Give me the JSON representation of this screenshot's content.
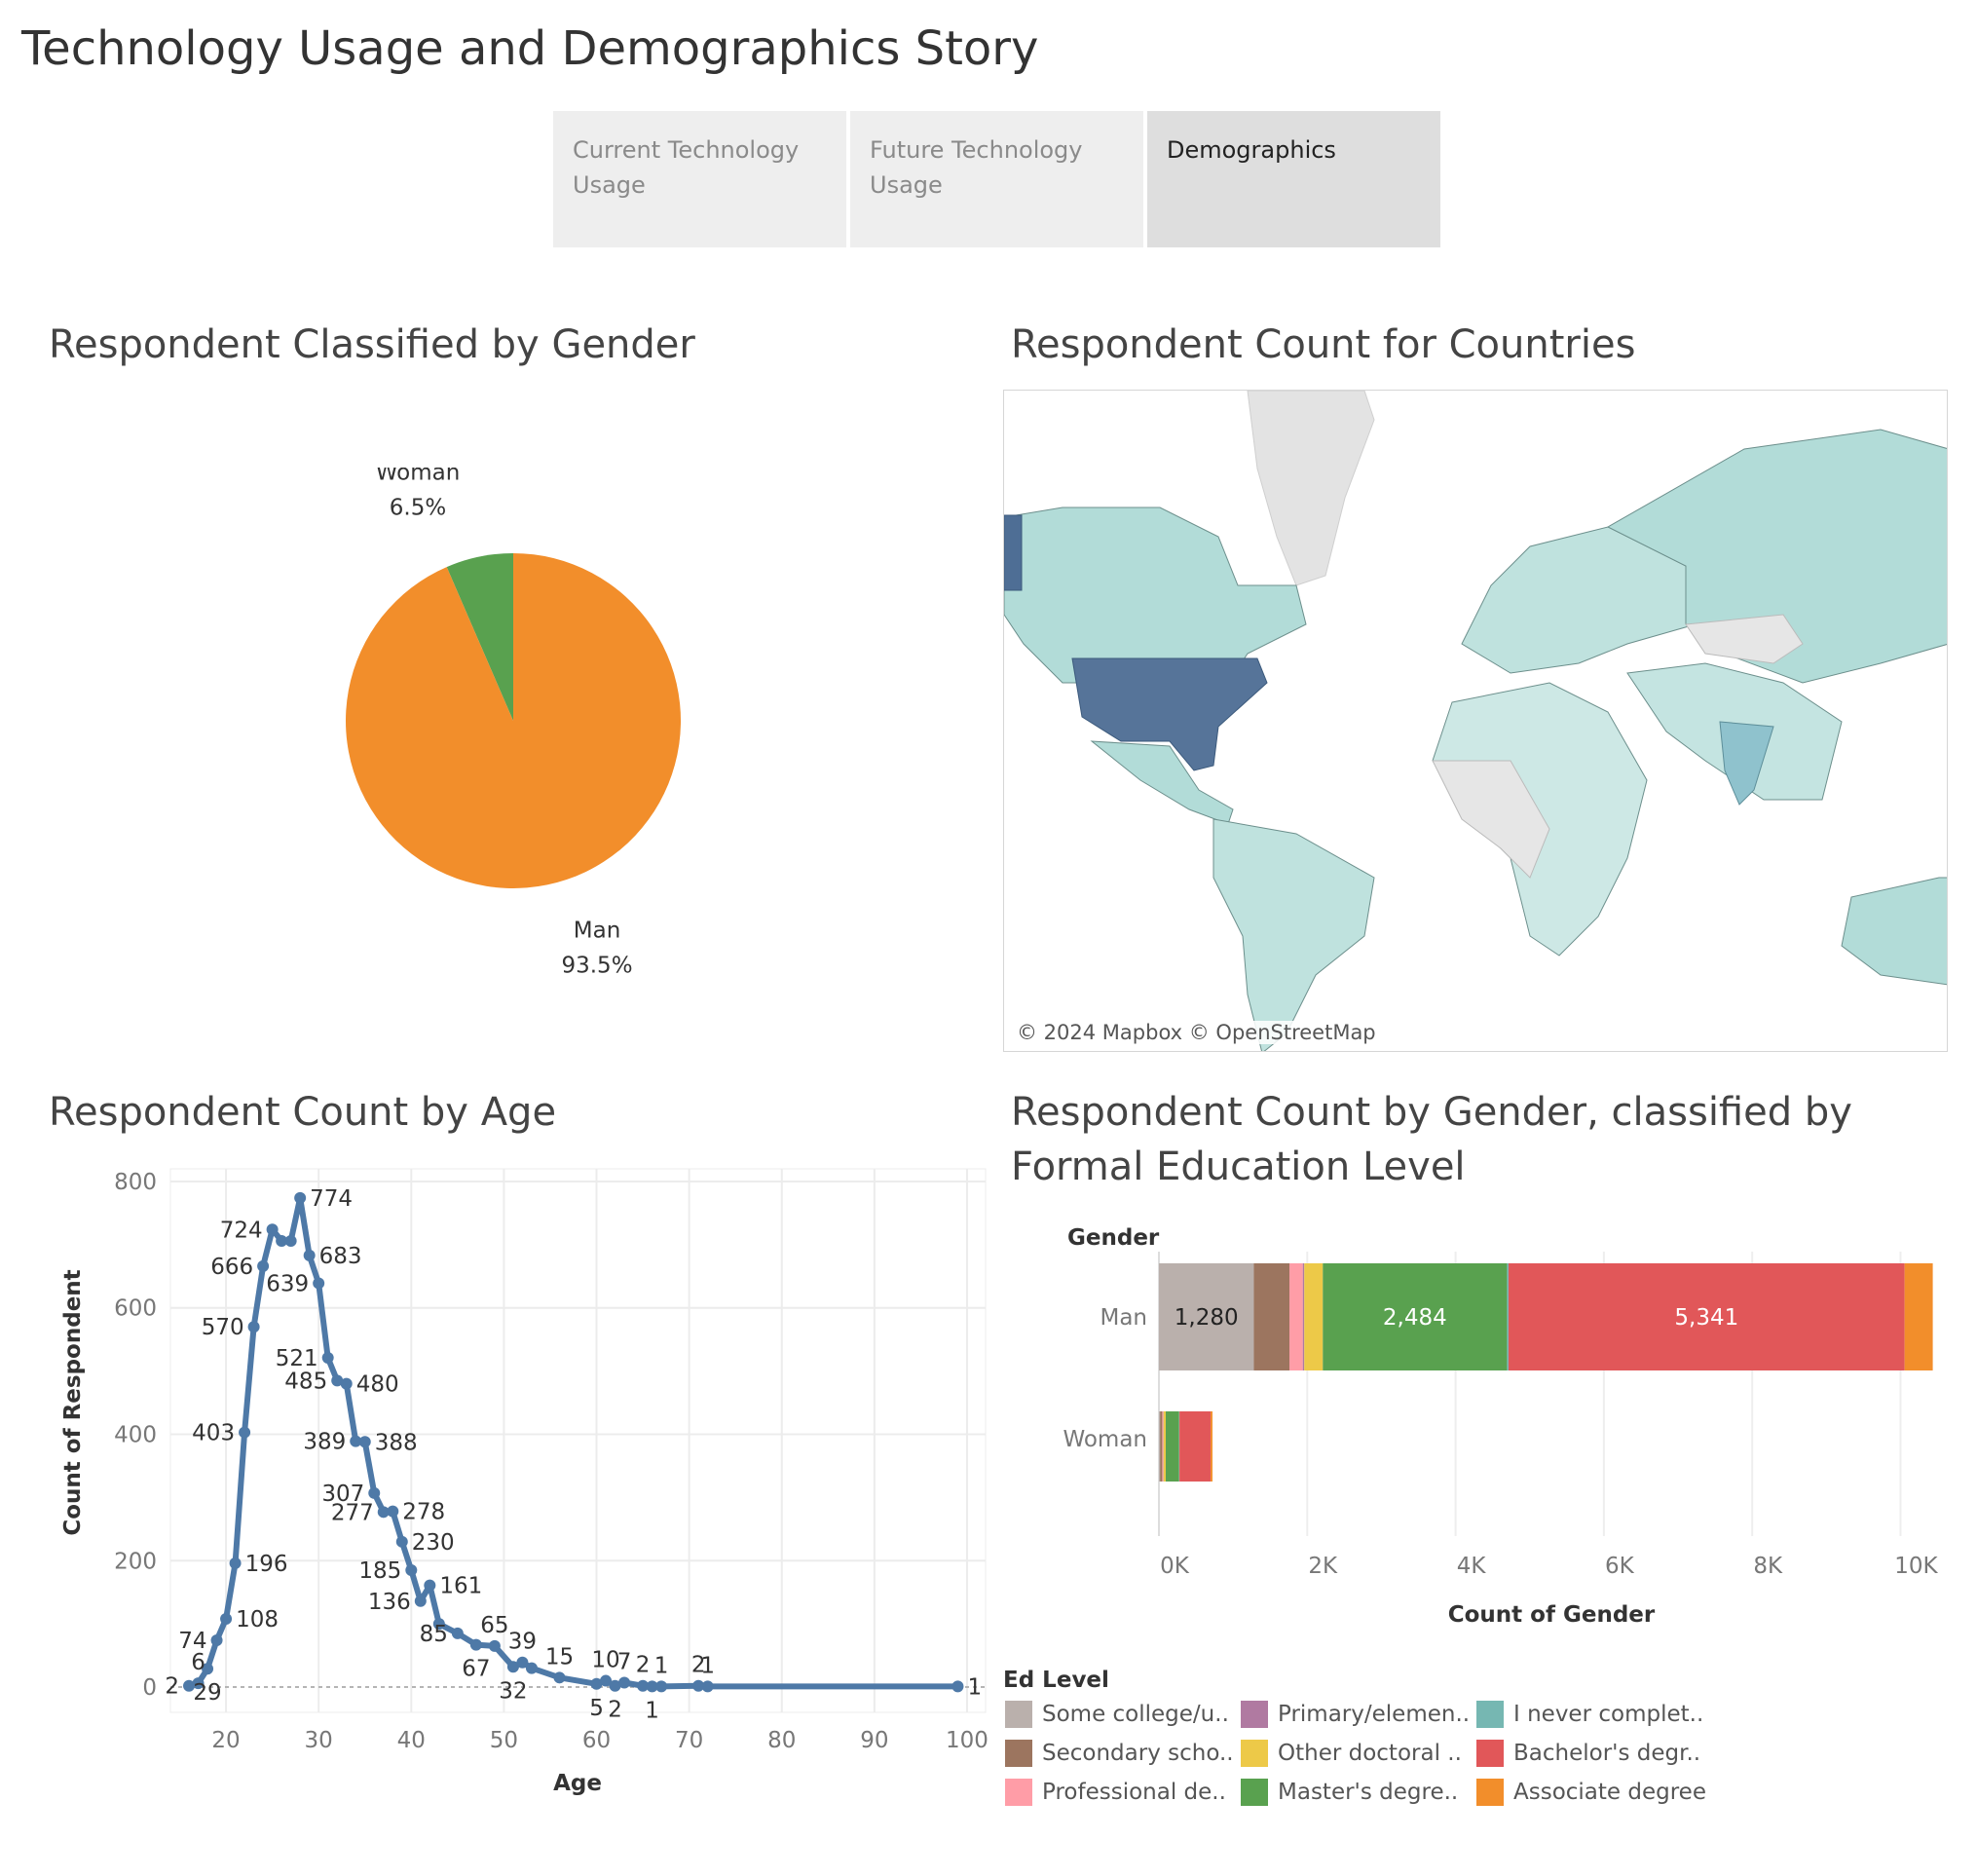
{
  "story": {
    "title": "Technology Usage and Demographics Story",
    "tabs": [
      {
        "label": "Current Technology Usage",
        "active": false
      },
      {
        "label": "Future Technology Usage",
        "active": false
      },
      {
        "label": "Demographics",
        "active": true
      }
    ]
  },
  "panels": {
    "gender": {
      "title": "Respondent Classified by Gender"
    },
    "map": {
      "title": "Respondent Count for Countries",
      "attribution": "© 2024 Mapbox © OpenStreetMap"
    },
    "age": {
      "title": "Respondent Count by Age"
    },
    "education": {
      "title": "Respondent Count by Gender, classified by Formal Education Level"
    }
  },
  "chart_data": [
    {
      "type": "pie",
      "slices": [
        {
          "label": "Man",
          "value": 93.5,
          "display": "93.5%",
          "color": "#f28e2b"
        },
        {
          "label": "Woman",
          "value": 6.5,
          "display": "6.5%",
          "color": "#59a14f"
        }
      ]
    },
    {
      "type": "line",
      "xlabel": "Age",
      "ylabel": "Count of Respondent",
      "xlim": [
        14,
        102
      ],
      "ylim": [
        -40,
        820
      ],
      "xticks": [
        20,
        30,
        40,
        50,
        60,
        70,
        80,
        90,
        100
      ],
      "yticks": [
        0,
        200,
        400,
        600,
        800
      ],
      "color": "#4e79a7",
      "points": [
        {
          "x": 16,
          "y": 2,
          "label": "2"
        },
        {
          "x": 17,
          "y": 6,
          "label": "6"
        },
        {
          "x": 18,
          "y": 29,
          "label": "29"
        },
        {
          "x": 19,
          "y": 74,
          "label": "74"
        },
        {
          "x": 20,
          "y": 108,
          "label": "108"
        },
        {
          "x": 21,
          "y": 196,
          "label": "196"
        },
        {
          "x": 22,
          "y": 403,
          "label": "403"
        },
        {
          "x": 23,
          "y": 570,
          "label": "570"
        },
        {
          "x": 24,
          "y": 666,
          "label": "666"
        },
        {
          "x": 25,
          "y": 724,
          "label": "724"
        },
        {
          "x": 26,
          "y": 706,
          "label": ""
        },
        {
          "x": 27,
          "y": 706,
          "label": ""
        },
        {
          "x": 28,
          "y": 774,
          "label": "774"
        },
        {
          "x": 29,
          "y": 683,
          "label": "683"
        },
        {
          "x": 30,
          "y": 639,
          "label": "639"
        },
        {
          "x": 31,
          "y": 521,
          "label": "521"
        },
        {
          "x": 32,
          "y": 485,
          "label": "485"
        },
        {
          "x": 33,
          "y": 480,
          "label": "480"
        },
        {
          "x": 34,
          "y": 389,
          "label": "389"
        },
        {
          "x": 35,
          "y": 388,
          "label": "388"
        },
        {
          "x": 36,
          "y": 307,
          "label": "307"
        },
        {
          "x": 37,
          "y": 277,
          "label": "277"
        },
        {
          "x": 38,
          "y": 278,
          "label": "278"
        },
        {
          "x": 39,
          "y": 230,
          "label": "230"
        },
        {
          "x": 40,
          "y": 185,
          "label": "185"
        },
        {
          "x": 41,
          "y": 136,
          "label": "136"
        },
        {
          "x": 42,
          "y": 161,
          "label": "161"
        },
        {
          "x": 43,
          "y": 100,
          "label": ""
        },
        {
          "x": 45,
          "y": 85,
          "label": "85"
        },
        {
          "x": 47,
          "y": 67,
          "label": "67"
        },
        {
          "x": 49,
          "y": 65,
          "label": "65"
        },
        {
          "x": 51,
          "y": 32,
          "label": "32"
        },
        {
          "x": 52,
          "y": 39,
          "label": "39"
        },
        {
          "x": 53,
          "y": 30,
          "label": ""
        },
        {
          "x": 56,
          "y": 15,
          "label": "15"
        },
        {
          "x": 60,
          "y": 5,
          "label": "5"
        },
        {
          "x": 61,
          "y": 10,
          "label": "10"
        },
        {
          "x": 62,
          "y": 2,
          "label": "2"
        },
        {
          "x": 63,
          "y": 7,
          "label": "7"
        },
        {
          "x": 65,
          "y": 2,
          "label": "2"
        },
        {
          "x": 66,
          "y": 1,
          "label": "1"
        },
        {
          "x": 67,
          "y": 1,
          "label": "1"
        },
        {
          "x": 71,
          "y": 2,
          "label": "2"
        },
        {
          "x": 72,
          "y": 1,
          "label": "1"
        },
        {
          "x": 99,
          "y": 1,
          "label": "1"
        }
      ]
    },
    {
      "type": "bar",
      "orientation": "horizontal",
      "stacked": true,
      "y_header": "Gender",
      "xlabel": "Count of Gender",
      "xlim": [
        0,
        10900
      ],
      "xticks": [
        {
          "v": 0,
          "label": "0K"
        },
        {
          "v": 2000,
          "label": "2K"
        },
        {
          "v": 4000,
          "label": "4K"
        },
        {
          "v": 6000,
          "label": "6K"
        },
        {
          "v": 8000,
          "label": "8K"
        },
        {
          "v": 10000,
          "label": "10K"
        }
      ],
      "categories": [
        "Man",
        "Woman"
      ],
      "series": [
        {
          "name": "Some college/u..",
          "color": "#bab0ac",
          "values": [
            1280,
            15
          ]
        },
        {
          "name": "Secondary scho..",
          "color": "#9c755f",
          "values": [
            480,
            30
          ]
        },
        {
          "name": "Professional de..",
          "color": "#ff9da7",
          "values": [
            180,
            12
          ]
        },
        {
          "name": "Primary/elemen..",
          "color": "#b07aa1",
          "values": [
            20,
            5
          ]
        },
        {
          "name": "Other doctoral ..",
          "color": "#edc948",
          "values": [
            250,
            30
          ]
        },
        {
          "name": "Master's degre..",
          "color": "#59a14f",
          "values": [
            2484,
            180
          ]
        },
        {
          "name": "I never complet..",
          "color": "#76b7b2",
          "values": [
            20,
            5
          ]
        },
        {
          "name": "Bachelor's degr..",
          "color": "#e15759",
          "values": [
            5341,
            420
          ]
        },
        {
          "name": "Associate degree",
          "color": "#f28e2b",
          "values": [
            380,
            25
          ]
        }
      ],
      "value_labels": {
        "Man": [
          "1,280",
          "",
          "",
          "",
          "",
          "2,484",
          "",
          "5,341",
          ""
        ]
      },
      "legend_title": "Ed Level",
      "legend_order": [
        "Some college/u..",
        "Primary/elemen..",
        "I never complet..",
        "Secondary scho..",
        "Other doctoral ..",
        "Bachelor's degr..",
        "Professional de..",
        "Master's degre..",
        "Associate degree"
      ]
    }
  ]
}
